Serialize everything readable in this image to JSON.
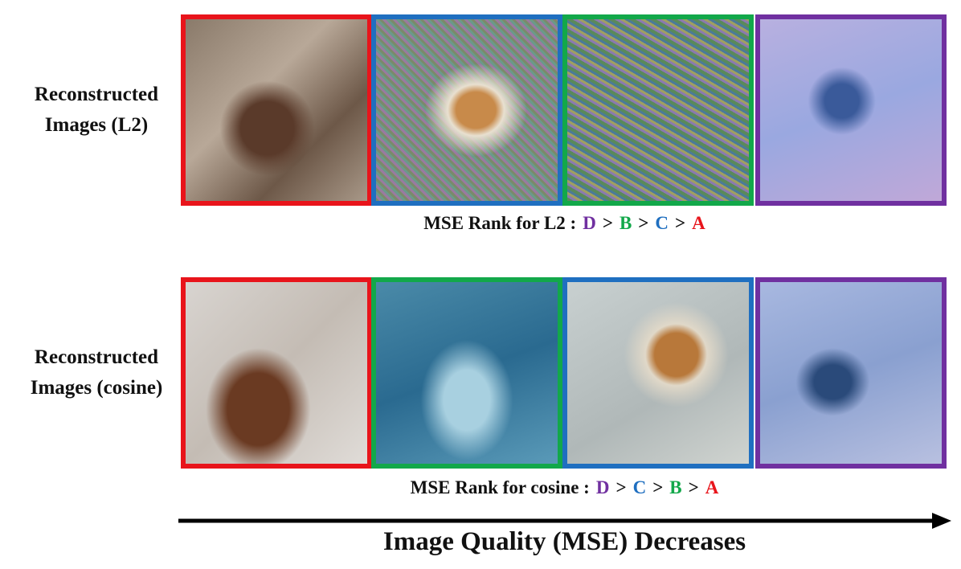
{
  "rows": [
    {
      "label_lines": [
        "Reconstructed",
        "Images (L2)"
      ],
      "frame_colors": [
        "#e8141b",
        "#1f6fc0",
        "#12a84a",
        "#7030a0"
      ],
      "rank_label": "MSE Rank for L2  :",
      "rank": [
        {
          "text": "D",
          "color": "#7030a0"
        },
        {
          "text": ">"
        },
        {
          "text": "B",
          "color": "#12a84a"
        },
        {
          "text": ">"
        },
        {
          "text": "C",
          "color": "#1f6fc0"
        },
        {
          "text": ">"
        },
        {
          "text": "A",
          "color": "#e8141b"
        }
      ]
    },
    {
      "label_lines": [
        "Reconstructed",
        "Images (cosine)"
      ],
      "frame_colors": [
        "#e8141b",
        "#12a84a",
        "#1f6fc0",
        "#7030a0"
      ],
      "rank_label": "MSE Rank for cosine :",
      "rank": [
        {
          "text": "D",
          "color": "#7030a0"
        },
        {
          "text": ">"
        },
        {
          "text": "C",
          "color": "#1f6fc0"
        },
        {
          "text": ">"
        },
        {
          "text": "B",
          "color": "#12a84a"
        },
        {
          "text": ">"
        },
        {
          "text": "A",
          "color": "#e8141b"
        }
      ]
    }
  ],
  "caption": "Image Quality (MSE) Decreases"
}
